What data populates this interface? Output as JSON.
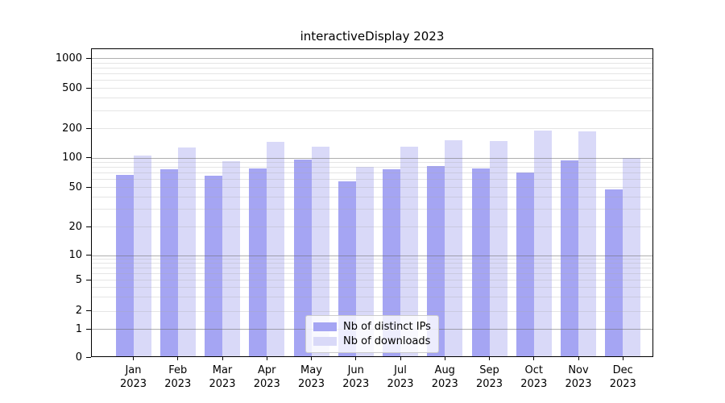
{
  "title": "interactiveDisplay 2023",
  "chart_data": {
    "type": "bar",
    "title": "interactiveDisplay 2023",
    "categories": [
      "Jan",
      "Feb",
      "Mar",
      "Apr",
      "May",
      "Jun",
      "Jul",
      "Aug",
      "Sep",
      "Oct",
      "Nov",
      "Dec"
    ],
    "x_tick_year": "2023",
    "series": [
      {
        "name": "Nb of distinct IPs",
        "color": "#a5a5f3",
        "values": [
          66,
          76,
          65,
          77,
          95,
          57,
          76,
          82,
          78,
          70,
          94,
          47
        ]
      },
      {
        "name": "Nb of downloads",
        "color": "#d9d9f8",
        "values": [
          105,
          128,
          91,
          146,
          130,
          80,
          129,
          151,
          149,
          190,
          185,
          100
        ]
      }
    ],
    "yscale": "symlog",
    "yticks": [
      0,
      1,
      2,
      5,
      10,
      20,
      50,
      100,
      200,
      500,
      1000
    ],
    "ylim": [
      0,
      1200
    ],
    "xlabel": "",
    "ylabel": "",
    "grid": "horizontal major+minor, drawn over bars",
    "legend_position": "lower center",
    "colors": {
      "background": "#ffffff",
      "axis_frame": "#000000",
      "tick_text": "#000000",
      "major_grid": "#b0b0b0",
      "minor_grid": "#e9e9e9"
    }
  }
}
